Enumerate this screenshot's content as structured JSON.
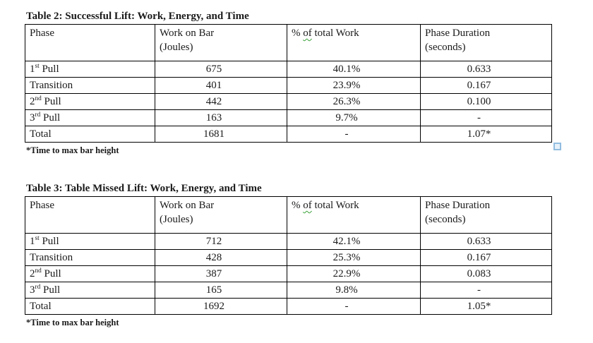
{
  "tables": [
    {
      "title": "Table 2: Successful Lift: Work, Energy, and Time",
      "footnote": "*Time to max bar height",
      "headers": {
        "phase": "Phase",
        "work_line1": "Work on Bar",
        "work_line2": "(Joules)",
        "percent_prefix": "% ",
        "percent_squiggle": "of",
        "percent_suffix": " total Work",
        "duration_line1": "Phase Duration",
        "duration_line2": "(seconds)"
      },
      "rows": [
        {
          "phase_text": "1",
          "phase_sup": "st",
          "phase_rest": " Pull",
          "work": "675",
          "percent": "40.1%",
          "duration": "0.633"
        },
        {
          "phase_text": "Transition",
          "phase_sup": "",
          "phase_rest": "",
          "work": "401",
          "percent": "23.9%",
          "duration": "0.167"
        },
        {
          "phase_text": "2",
          "phase_sup": "nd",
          "phase_rest": " Pull",
          "work": "442",
          "percent": "26.3%",
          "duration": "0.100"
        },
        {
          "phase_text": "3",
          "phase_sup": "rd",
          "phase_rest": " Pull",
          "work": "163",
          "percent": "9.7%",
          "duration": "-"
        },
        {
          "phase_text": "Total",
          "phase_sup": "",
          "phase_rest": "",
          "work": "1681",
          "percent": "-",
          "duration": "1.07*"
        }
      ]
    },
    {
      "title": "Table 3: Table Missed Lift: Work, Energy, and Time",
      "footnote": "*Time to max bar height",
      "headers": {
        "phase": "Phase",
        "work_line1": "Work on Bar",
        "work_line2": "(Joules)",
        "percent_prefix": "% ",
        "percent_squiggle": "of",
        "percent_suffix": " total Work",
        "duration_line1": "Phase Duration",
        "duration_line2": "(seconds)"
      },
      "rows": [
        {
          "phase_text": "1",
          "phase_sup": "st",
          "phase_rest": " Pull",
          "work": "712",
          "percent": "42.1%",
          "duration": "0.633"
        },
        {
          "phase_text": "Transition",
          "phase_sup": "",
          "phase_rest": "",
          "work": "428",
          "percent": "25.3%",
          "duration": "0.167"
        },
        {
          "phase_text": "2",
          "phase_sup": "nd",
          "phase_rest": " Pull",
          "work": "387",
          "percent": "22.9%",
          "duration": "0.083"
        },
        {
          "phase_text": "3",
          "phase_sup": "rd",
          "phase_rest": " Pull",
          "work": "165",
          "percent": "9.8%",
          "duration": "-"
        },
        {
          "phase_text": "Total",
          "phase_sup": "",
          "phase_rest": "",
          "work": "1692",
          "percent": "-",
          "duration": "1.05*"
        }
      ]
    }
  ],
  "colors": {
    "text": "#1a1a1a",
    "table_border": "#000000",
    "spellcheck_squiggle": "#3aa23a",
    "anchor_marker_border": "#92bde0",
    "anchor_marker_fill": "#e7f1fa"
  }
}
